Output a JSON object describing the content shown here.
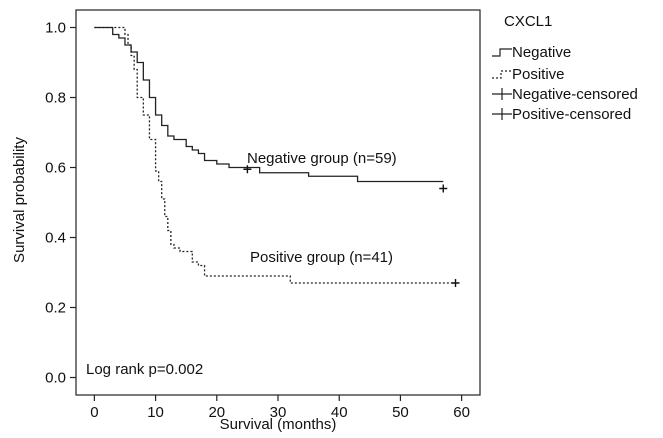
{
  "chart_data": {
    "type": "line",
    "subtype": "kaplan-meier step",
    "xlabel": "Survival (months)",
    "ylabel": "Survival probability",
    "xlim": [
      -3,
      63
    ],
    "ylim": [
      -0.05,
      1.05
    ],
    "xticks": [
      0,
      10,
      20,
      30,
      40,
      50,
      60
    ],
    "yticks": [
      0.0,
      0.2,
      0.4,
      0.6,
      0.8,
      1.0
    ],
    "ytick_labels": [
      "0.0",
      "0.2",
      "0.4",
      "0.6",
      "0.8",
      "1.0"
    ],
    "grid": false,
    "legend": {
      "title": "CXCL1",
      "placement": "outside right, top",
      "entries": [
        "Negative",
        "Positive",
        "Negative-censored",
        "Positive-censored"
      ]
    },
    "annotations": [
      {
        "text": "Negative group (n=59)",
        "x": 24,
        "y": 0.635
      },
      {
        "text": "Positive group (n=41)",
        "x": 25,
        "y": 0.3
      },
      {
        "text": "Log rank p=0.002",
        "x": -2,
        "y": 0.0
      }
    ],
    "series": [
      {
        "name": "Negative",
        "style": "solid",
        "color": "#222222",
        "x": [
          0,
          3,
          4,
          5,
          6,
          7,
          8,
          9,
          10,
          11,
          12,
          13,
          15,
          16,
          17,
          18,
          20,
          22,
          27,
          35,
          43,
          57
        ],
        "y": [
          1.0,
          0.98,
          0.97,
          0.95,
          0.93,
          0.9,
          0.85,
          0.8,
          0.75,
          0.72,
          0.69,
          0.68,
          0.66,
          0.65,
          0.64,
          0.62,
          0.61,
          0.6,
          0.585,
          0.575,
          0.56,
          0.56
        ],
        "censored": [
          {
            "x": 25,
            "y": 0.595
          },
          {
            "x": 57,
            "y": 0.54
          }
        ]
      },
      {
        "name": "Positive",
        "style": "dashed",
        "color": "#222222",
        "x": [
          0,
          5,
          5.5,
          6,
          6.5,
          7,
          8,
          9,
          10,
          10.5,
          11,
          11.5,
          12,
          12.5,
          13,
          14,
          15,
          16,
          17,
          18,
          32,
          59
        ],
        "y": [
          1.0,
          0.98,
          0.95,
          0.92,
          0.88,
          0.8,
          0.75,
          0.68,
          0.59,
          0.56,
          0.51,
          0.46,
          0.42,
          0.38,
          0.37,
          0.36,
          0.36,
          0.33,
          0.32,
          0.29,
          0.27,
          0.27
        ],
        "censored": [
          {
            "x": 59,
            "y": 0.27
          }
        ]
      }
    ]
  }
}
